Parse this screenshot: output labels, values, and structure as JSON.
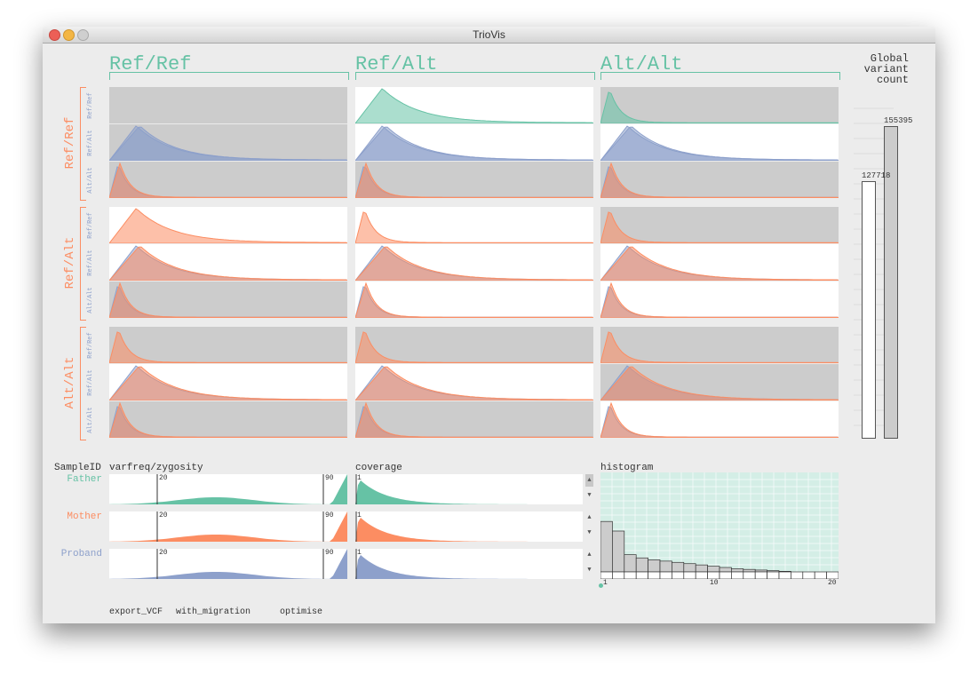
{
  "window": {
    "title": "TrioVis"
  },
  "columns": [
    "Ref/Ref",
    "Ref/Alt",
    "Alt/Alt"
  ],
  "rows": [
    "Ref/Ref",
    "Ref/Alt",
    "Alt/Alt"
  ],
  "sublabels": [
    "Ref/Ref",
    "Ref/Alt",
    "Alt/Alt"
  ],
  "global": {
    "label": "Global\nvariant\ncount",
    "bars": [
      {
        "value": 127718,
        "label": "127718"
      },
      {
        "value": 155395,
        "label": "155395"
      }
    ]
  },
  "controls": {
    "sampleid_label": "SampleID",
    "varfreq_label": "varfreq/zygosity",
    "coverage_label": "coverage",
    "histogram_label": "histogram",
    "samples": [
      {
        "name": "Father",
        "color": "#66c2a5"
      },
      {
        "name": "Mother",
        "color": "#fc8d62"
      },
      {
        "name": "Proband",
        "color": "#8da0cb"
      }
    ],
    "varfreq_low": "20",
    "varfreq_high": "90",
    "coverage_min": "1"
  },
  "histogram": {
    "ticks": [
      "1",
      "10",
      "20"
    ],
    "values": [
      90,
      75,
      38,
      33,
      30,
      28,
      26,
      24,
      22,
      20,
      18,
      16,
      15,
      14,
      13,
      12,
      11,
      10,
      9,
      8
    ]
  },
  "bottom_links": [
    "export_VCF",
    "with_migration",
    "optimise"
  ],
  "colors": {
    "father": "#66c2a5",
    "mother": "#fc8d62",
    "proband": "#8da0cb",
    "accent": "#66c2a5"
  }
}
